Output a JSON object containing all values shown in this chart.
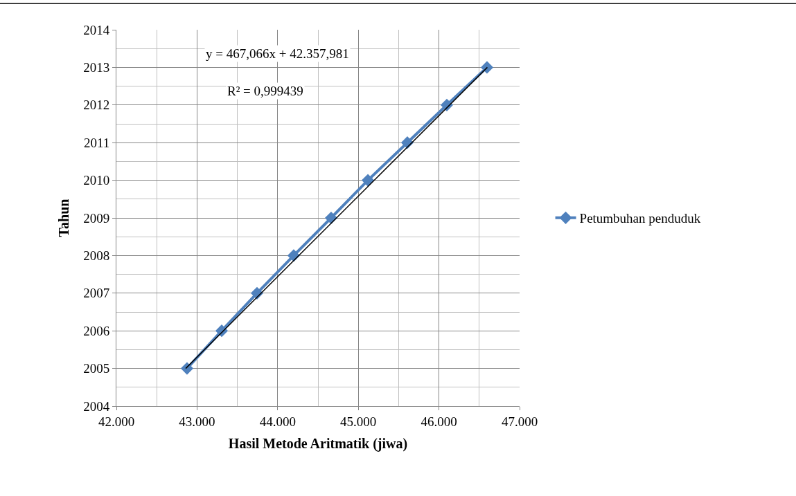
{
  "chart_data": {
    "type": "line",
    "xlabel": "Hasil Metode Aritmatik (jiwa)",
    "ylabel": "Tahun",
    "annotations": [
      "y = 467,066x + 42.357,981",
      "R² = 0,999439"
    ],
    "series": [
      {
        "name": "Petumbuhan penduduk",
        "color": "#4f81bd",
        "marker": "diamond",
        "x": [
          42876,
          43306,
          43744,
          44199,
          44663,
          45119,
          45608,
          46098,
          46596
        ],
        "values": [
          2005,
          2006,
          2007,
          2008,
          2009,
          2010,
          2011,
          2012,
          2013
        ]
      },
      {
        "type": "line",
        "color": "#000000",
        "marker": "none",
        "x": [
          42860,
          46600
        ],
        "values": [
          2005.0,
          2013.0
        ]
      }
    ],
    "xlim": [
      42000,
      47000
    ],
    "xticks": [
      {
        "value": 42000,
        "label": "42.000"
      },
      {
        "value": 43000,
        "label": "43.000"
      },
      {
        "value": 44000,
        "label": "44.000"
      },
      {
        "value": 45000,
        "label": "45.000"
      },
      {
        "value": 46000,
        "label": "46.000"
      },
      {
        "value": 47000,
        "label": "47.000"
      }
    ],
    "ylim": [
      2004,
      2014
    ],
    "yticks": [
      2004,
      2005,
      2006,
      2007,
      2008,
      2009,
      2010,
      2011,
      2012,
      2013,
      2014
    ],
    "grid": true,
    "legend": "right"
  }
}
